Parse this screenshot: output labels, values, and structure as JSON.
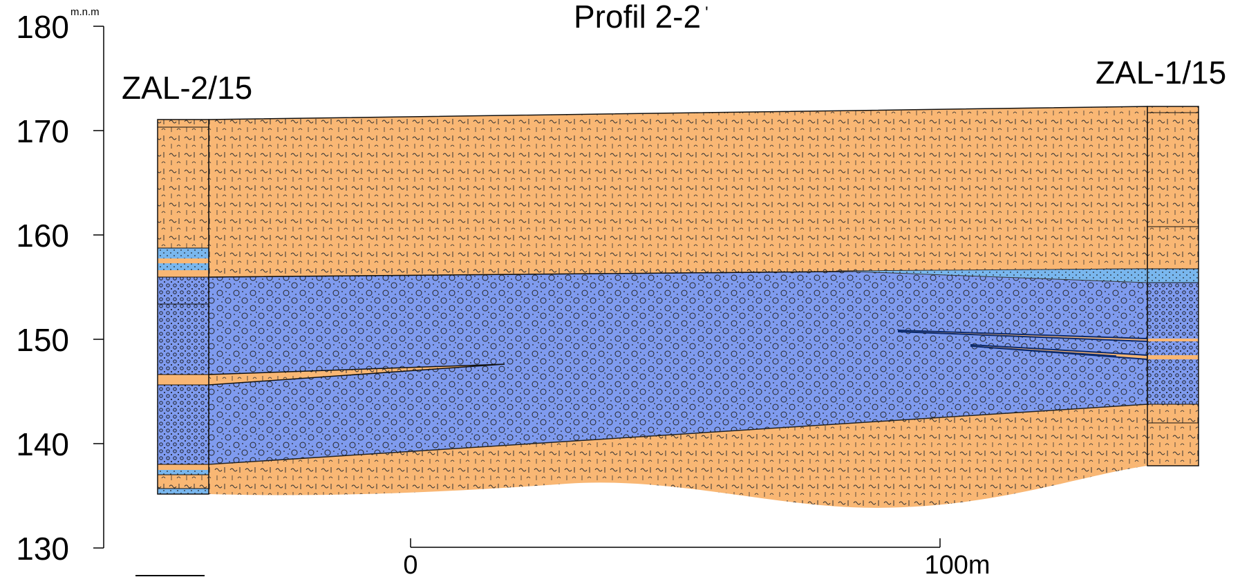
{
  "title": "Profil 2-2",
  "title_mark": "'",
  "axis": {
    "unit": "m.n.m",
    "ticks": [
      "180",
      "170",
      "160",
      "150",
      "140",
      "130"
    ]
  },
  "boreholes": {
    "left": "ZAL-2/15",
    "right": "ZAL-1/15"
  },
  "scale_bar": {
    "start_label": "0",
    "end_label": "100m"
  },
  "colors": {
    "clay": "#f9b774",
    "gravel": "#7f9bef",
    "sand": "#79b7ee",
    "outline": "#1a1a1a",
    "lens_line": "#0b2a6e"
  },
  "pattern_icons": [
    "clay-hatch",
    "gravel-circles",
    "sand-dots"
  ]
}
